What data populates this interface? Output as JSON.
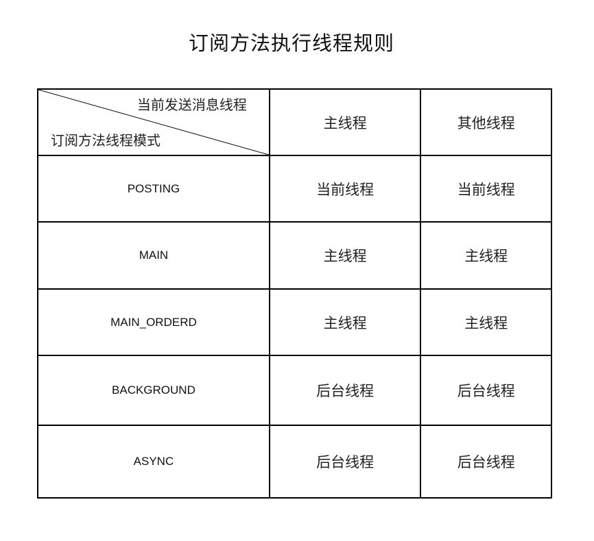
{
  "title": "订阅方法执行线程规则",
  "header": {
    "corner_top": "当前发送消息线程",
    "corner_bottom": "订阅方法线程模式",
    "col_main": "主线程",
    "col_other": "其他线程"
  },
  "rows": [
    {
      "mode": "POSTING",
      "main": "当前线程",
      "other": "当前线程"
    },
    {
      "mode": "MAIN",
      "main": "主线程",
      "other": "主线程"
    },
    {
      "mode": "MAIN_ORDERD",
      "main": "主线程",
      "other": "主线程"
    },
    {
      "mode": "BACKGROUND",
      "main": "后台线程",
      "other": "后台线程"
    },
    {
      "mode": "ASYNC",
      "main": "后台线程",
      "other": "后台线程"
    }
  ]
}
